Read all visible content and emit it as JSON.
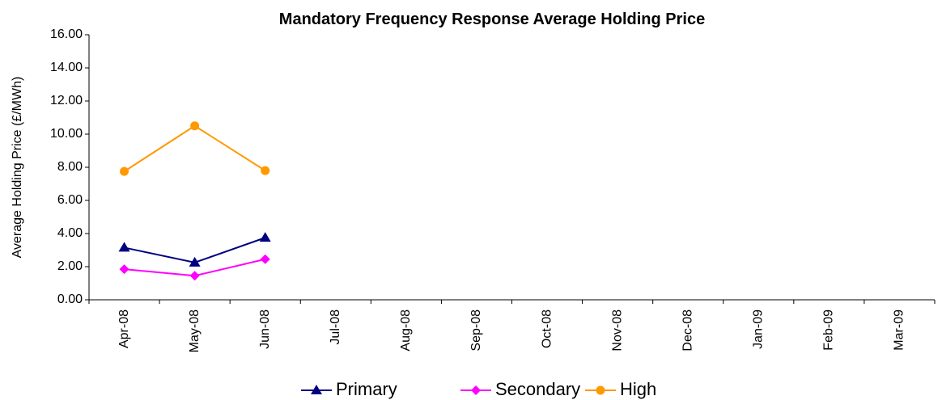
{
  "chart_data": {
    "type": "line",
    "title": "Mandatory Frequency Response Average Holding Price",
    "y_label": "Average Holding Price (£/MWh)",
    "categories": [
      "Apr-08",
      "May-08",
      "Jun-08",
      "Jul-08",
      "Aug-08",
      "Sep-08",
      "Oct-08",
      "Nov-08",
      "Dec-08",
      "Jan-09",
      "Feb-09",
      "Mar-09"
    ],
    "series": [
      {
        "name": "Primary",
        "color": "#000080",
        "marker": "triangle",
        "values": [
          3.15,
          2.25,
          3.75,
          null,
          null,
          null,
          null,
          null,
          null,
          null,
          null,
          null
        ]
      },
      {
        "name": "Secondary",
        "color": "#ff00ff",
        "marker": "diamond",
        "values": [
          1.85,
          1.45,
          2.45,
          null,
          null,
          null,
          null,
          null,
          null,
          null,
          null,
          null
        ]
      },
      {
        "name": "High",
        "color": "#ff9900",
        "marker": "circle",
        "values": [
          7.75,
          10.5,
          7.8,
          null,
          null,
          null,
          null,
          null,
          null,
          null,
          null,
          null
        ]
      }
    ],
    "ylim": [
      0,
      16
    ],
    "yticks": [
      {
        "value": 0,
        "label": "0.00"
      },
      {
        "value": 2,
        "label": "2.00"
      },
      {
        "value": 4,
        "label": "4.00"
      },
      {
        "value": 6,
        "label": "6.00"
      },
      {
        "value": 8,
        "label": "8.00"
      },
      {
        "value": 10,
        "label": "10.00"
      },
      {
        "value": 12,
        "label": "12.00"
      },
      {
        "value": 14,
        "label": "14.00"
      },
      {
        "value": 16,
        "label": "16.00"
      }
    ],
    "grid": false,
    "legend": "bottom"
  }
}
